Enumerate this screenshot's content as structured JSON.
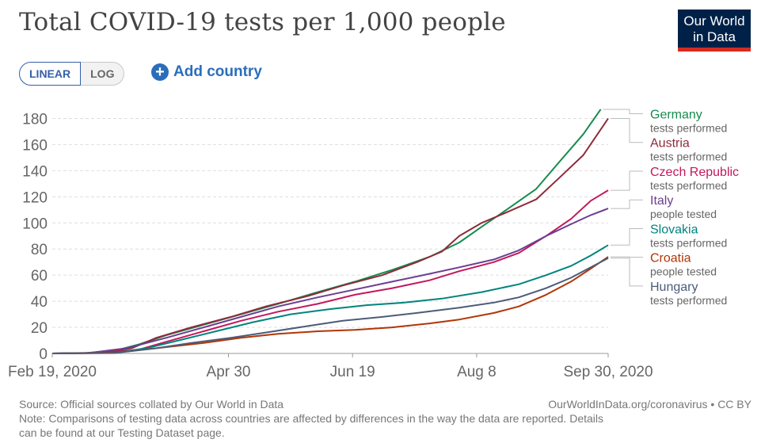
{
  "title": "Total COVID-19 tests per 1,000 people",
  "logo": {
    "line1": "Our World",
    "line2": "in Data",
    "color": "#002147",
    "accent": "#d42b21"
  },
  "controls": {
    "linear_label": "LINEAR",
    "log_label": "LOG",
    "add_country_label": "Add country",
    "add_icon": "plus-circle-icon"
  },
  "footer": {
    "source": "Source: Official sources collated by Our World in Data",
    "credit": "OurWorldInData.org/coronavirus • CC BY",
    "note_line1": "Note: Comparisons of testing data across countries are affected by differences in the way the data are reported. Details",
    "note_line2": "can be found at our Testing Dataset page."
  },
  "chart_data": {
    "type": "line",
    "title": "Total COVID-19 tests per 1,000 people",
    "scale": "linear",
    "ylim": [
      0,
      190
    ],
    "yticks": [
      0,
      20,
      40,
      60,
      80,
      100,
      120,
      140,
      160,
      180
    ],
    "xlim": [
      "2020-02-19",
      "2020-09-30"
    ],
    "xticks": [
      {
        "date": "2020-02-19",
        "label": "Feb 19, 2020"
      },
      {
        "date": "2020-04-30",
        "label": "Apr 30"
      },
      {
        "date": "2020-06-19",
        "label": "Jun 19"
      },
      {
        "date": "2020-08-08",
        "label": "Aug 8"
      },
      {
        "date": "2020-09-30",
        "label": "Sep 30, 2020"
      }
    ],
    "grid": true,
    "legend": "right",
    "series": [
      {
        "name": "Germany",
        "sub": "tests performed",
        "color": "#168b4d",
        "label_y": 180,
        "points": [
          [
            "2020-02-19",
            0
          ],
          [
            "2020-03-03",
            0.3
          ],
          [
            "2020-03-15",
            2
          ],
          [
            "2020-03-25",
            7
          ],
          [
            "2020-04-05",
            14
          ],
          [
            "2020-04-20",
            22
          ],
          [
            "2020-05-05",
            30
          ],
          [
            "2020-05-20",
            38
          ],
          [
            "2020-06-05",
            47
          ],
          [
            "2020-06-20",
            55
          ],
          [
            "2020-07-05",
            64
          ],
          [
            "2020-07-20",
            74
          ],
          [
            "2020-08-01",
            85
          ],
          [
            "2020-08-10",
            97
          ],
          [
            "2020-08-20",
            110
          ],
          [
            "2020-09-01",
            126
          ],
          [
            "2020-09-10",
            146
          ],
          [
            "2020-09-20",
            168
          ],
          [
            "2020-09-27",
            187
          ]
        ]
      },
      {
        "name": "Austria",
        "sub": "tests performed",
        "color": "#8e2b3a",
        "label_y": 158,
        "points": [
          [
            "2020-02-19",
            0
          ],
          [
            "2020-03-10",
            0.5
          ],
          [
            "2020-03-22",
            4
          ],
          [
            "2020-04-01",
            12
          ],
          [
            "2020-04-15",
            20
          ],
          [
            "2020-05-01",
            28
          ],
          [
            "2020-05-15",
            36
          ],
          [
            "2020-06-01",
            44
          ],
          [
            "2020-06-15",
            52
          ],
          [
            "2020-07-01",
            60
          ],
          [
            "2020-07-15",
            70
          ],
          [
            "2020-07-25",
            78
          ],
          [
            "2020-08-01",
            90
          ],
          [
            "2020-08-10",
            100
          ],
          [
            "2020-08-20",
            108
          ],
          [
            "2020-09-01",
            118
          ],
          [
            "2020-09-10",
            134
          ],
          [
            "2020-09-20",
            152
          ],
          [
            "2020-09-30",
            180
          ]
        ]
      },
      {
        "name": "Czech Republic",
        "sub": "tests performed",
        "color": "#c2185b",
        "label_y": 136,
        "points": [
          [
            "2020-02-19",
            0
          ],
          [
            "2020-03-10",
            0.3
          ],
          [
            "2020-03-25",
            3
          ],
          [
            "2020-04-05",
            9
          ],
          [
            "2020-04-20",
            17
          ],
          [
            "2020-05-05",
            25
          ],
          [
            "2020-05-20",
            32
          ],
          [
            "2020-06-05",
            38
          ],
          [
            "2020-06-20",
            45
          ],
          [
            "2020-07-05",
            50
          ],
          [
            "2020-07-20",
            56
          ],
          [
            "2020-08-01",
            63
          ],
          [
            "2020-08-15",
            70
          ],
          [
            "2020-08-25",
            77
          ],
          [
            "2020-09-05",
            90
          ],
          [
            "2020-09-15",
            103
          ],
          [
            "2020-09-23",
            117
          ],
          [
            "2020-09-30",
            125
          ]
        ]
      },
      {
        "name": "Italy",
        "sub": "people tested",
        "color": "#6d3e91",
        "label_y": 114,
        "points": [
          [
            "2020-02-19",
            0
          ],
          [
            "2020-03-05",
            0.5
          ],
          [
            "2020-03-20",
            4
          ],
          [
            "2020-04-05",
            12
          ],
          [
            "2020-04-20",
            20
          ],
          [
            "2020-05-05",
            28
          ],
          [
            "2020-05-20",
            36
          ],
          [
            "2020-06-05",
            43
          ],
          [
            "2020-06-20",
            49
          ],
          [
            "2020-07-05",
            55
          ],
          [
            "2020-07-20",
            61
          ],
          [
            "2020-08-01",
            66
          ],
          [
            "2020-08-15",
            72
          ],
          [
            "2020-08-25",
            79
          ],
          [
            "2020-09-05",
            90
          ],
          [
            "2020-09-15",
            99
          ],
          [
            "2020-09-23",
            106
          ],
          [
            "2020-09-30",
            111
          ]
        ]
      },
      {
        "name": "Slovakia",
        "sub": "tests performed",
        "color": "#00847e",
        "label_y": 92,
        "points": [
          [
            "2020-02-19",
            0
          ],
          [
            "2020-03-15",
            0.5
          ],
          [
            "2020-03-28",
            4
          ],
          [
            "2020-04-10",
            10
          ],
          [
            "2020-04-25",
            17
          ],
          [
            "2020-05-10",
            24
          ],
          [
            "2020-05-25",
            30
          ],
          [
            "2020-06-10",
            34
          ],
          [
            "2020-06-25",
            37
          ],
          [
            "2020-07-10",
            39
          ],
          [
            "2020-07-25",
            42
          ],
          [
            "2020-08-10",
            47
          ],
          [
            "2020-08-25",
            53
          ],
          [
            "2020-09-05",
            60
          ],
          [
            "2020-09-15",
            67
          ],
          [
            "2020-09-23",
            75
          ],
          [
            "2020-09-30",
            83
          ]
        ]
      },
      {
        "name": "Croatia",
        "sub": "people tested",
        "color": "#b13507",
        "label_y": 70,
        "points": [
          [
            "2020-02-19",
            0
          ],
          [
            "2020-03-15",
            0.5
          ],
          [
            "2020-04-01",
            4
          ],
          [
            "2020-04-20",
            8
          ],
          [
            "2020-05-05",
            12
          ],
          [
            "2020-05-20",
            15
          ],
          [
            "2020-06-05",
            17
          ],
          [
            "2020-06-20",
            18
          ],
          [
            "2020-07-05",
            20
          ],
          [
            "2020-07-20",
            23
          ],
          [
            "2020-08-01",
            26
          ],
          [
            "2020-08-15",
            31
          ],
          [
            "2020-08-25",
            36
          ],
          [
            "2020-09-05",
            45
          ],
          [
            "2020-09-15",
            55
          ],
          [
            "2020-09-23",
            65
          ],
          [
            "2020-09-30",
            74
          ]
        ]
      },
      {
        "name": "Hungary",
        "sub": "tests performed",
        "color": "#4c5c78",
        "label_y": 48,
        "points": [
          [
            "2020-02-19",
            0
          ],
          [
            "2020-03-15",
            0.3
          ],
          [
            "2020-04-01",
            4
          ],
          [
            "2020-04-15",
            8
          ],
          [
            "2020-05-01",
            12
          ],
          [
            "2020-05-15",
            16
          ],
          [
            "2020-06-01",
            21
          ],
          [
            "2020-06-15",
            25
          ],
          [
            "2020-07-01",
            28
          ],
          [
            "2020-07-15",
            31
          ],
          [
            "2020-08-01",
            35
          ],
          [
            "2020-08-15",
            39
          ],
          [
            "2020-08-25",
            43
          ],
          [
            "2020-09-05",
            50
          ],
          [
            "2020-09-15",
            58
          ],
          [
            "2020-09-23",
            66
          ],
          [
            "2020-09-30",
            73
          ]
        ]
      }
    ]
  }
}
